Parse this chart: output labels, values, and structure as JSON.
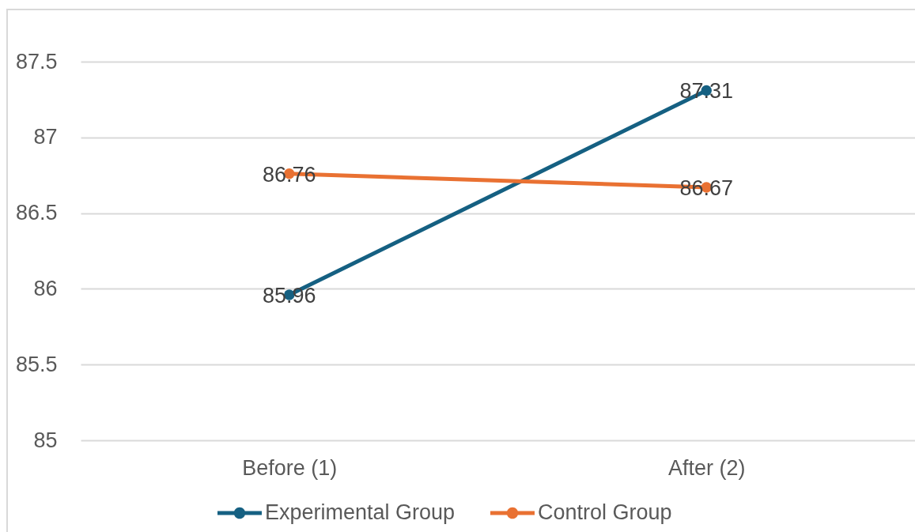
{
  "chart_data": {
    "type": "line",
    "categories": [
      "Before (1)",
      "After (2)"
    ],
    "series": [
      {
        "name": "Experimental Group",
        "color": "#156082",
        "values": [
          85.96,
          87.31
        ]
      },
      {
        "name": "Control Group",
        "color": "#e97132",
        "values": [
          86.76,
          86.67
        ]
      }
    ],
    "ylim": [
      85,
      87.5
    ],
    "yticks": [
      85,
      85.5,
      86,
      86.5,
      87,
      87.5
    ],
    "grid": "y",
    "legend": "bottom",
    "marker": "circle",
    "data_labels": true
  }
}
